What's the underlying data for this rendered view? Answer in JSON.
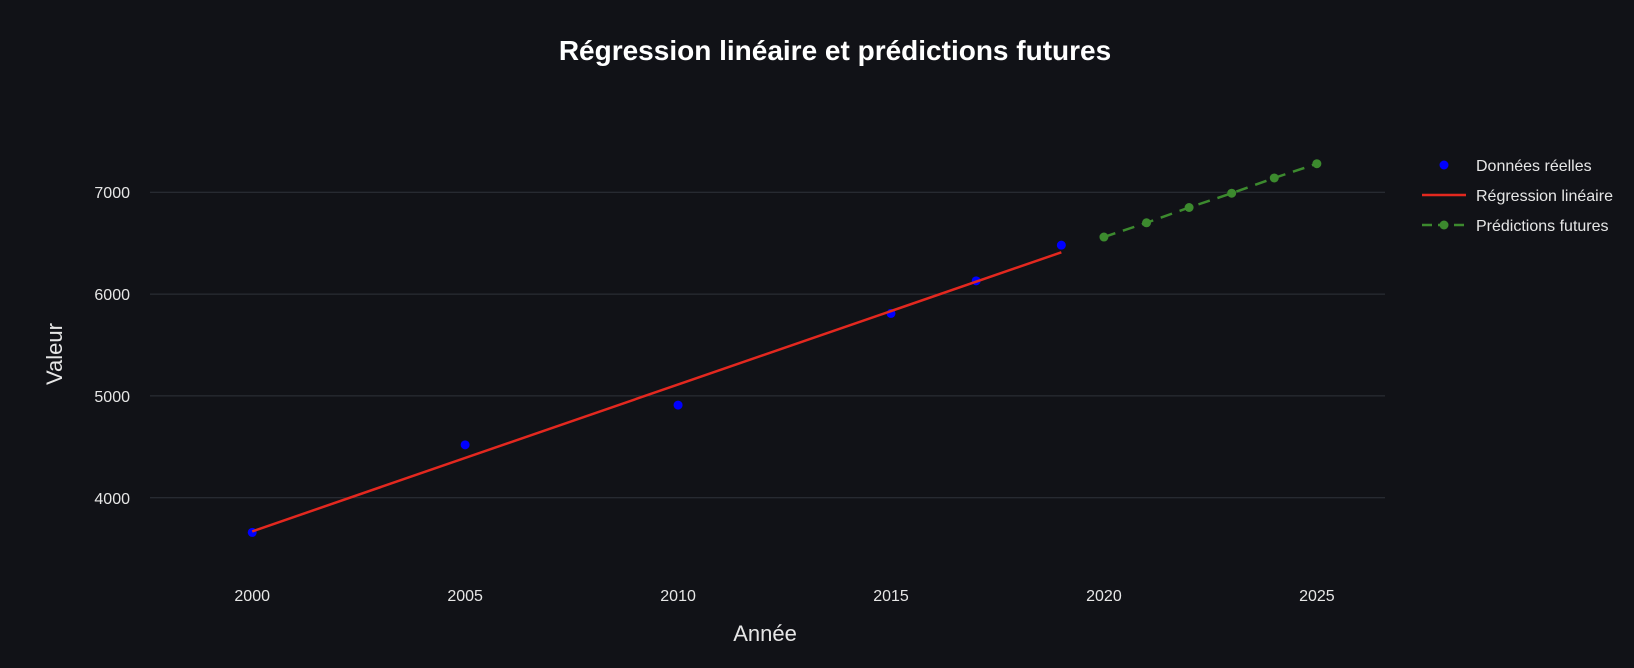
{
  "chart_data": {
    "type": "line",
    "title": "Régression linéaire et prédictions futures",
    "xlabel": "Année",
    "ylabel": "Valeur",
    "xlim": [
      1997.6,
      2026.6
    ],
    "ylim": [
      3340,
      7660
    ],
    "x_ticks": [
      2000,
      2005,
      2010,
      2015,
      2020,
      2025
    ],
    "y_ticks": [
      4000,
      5000,
      6000,
      7000
    ],
    "grid": true,
    "legend_position": "top-right",
    "series": [
      {
        "name": "Données réelles",
        "kind": "markers",
        "color": "#0000ff",
        "points": [
          {
            "x": 2000,
            "y": 3660
          },
          {
            "x": 2005,
            "y": 4520
          },
          {
            "x": 2010,
            "y": 4910
          },
          {
            "x": 2015,
            "y": 5810
          },
          {
            "x": 2017,
            "y": 6130
          },
          {
            "x": 2019,
            "y": 6480
          }
        ]
      },
      {
        "name": "Régression linéaire",
        "kind": "line",
        "color": "#e3281f",
        "points": [
          {
            "x": 2000,
            "y": 3670
          },
          {
            "x": 2019,
            "y": 6410
          }
        ]
      },
      {
        "name": "Prédictions futures",
        "kind": "dashed-line-markers",
        "color": "#3c8a2e",
        "points": [
          {
            "x": 2020,
            "y": 6560
          },
          {
            "x": 2021,
            "y": 6700
          },
          {
            "x": 2022,
            "y": 6850
          },
          {
            "x": 2023,
            "y": 6990
          },
          {
            "x": 2024,
            "y": 7140
          },
          {
            "x": 2025,
            "y": 7280
          }
        ]
      }
    ]
  },
  "colors": {
    "background": "#111217",
    "grid": "#2f323a",
    "text": "#e6e6e6",
    "title": "#ffffff"
  }
}
